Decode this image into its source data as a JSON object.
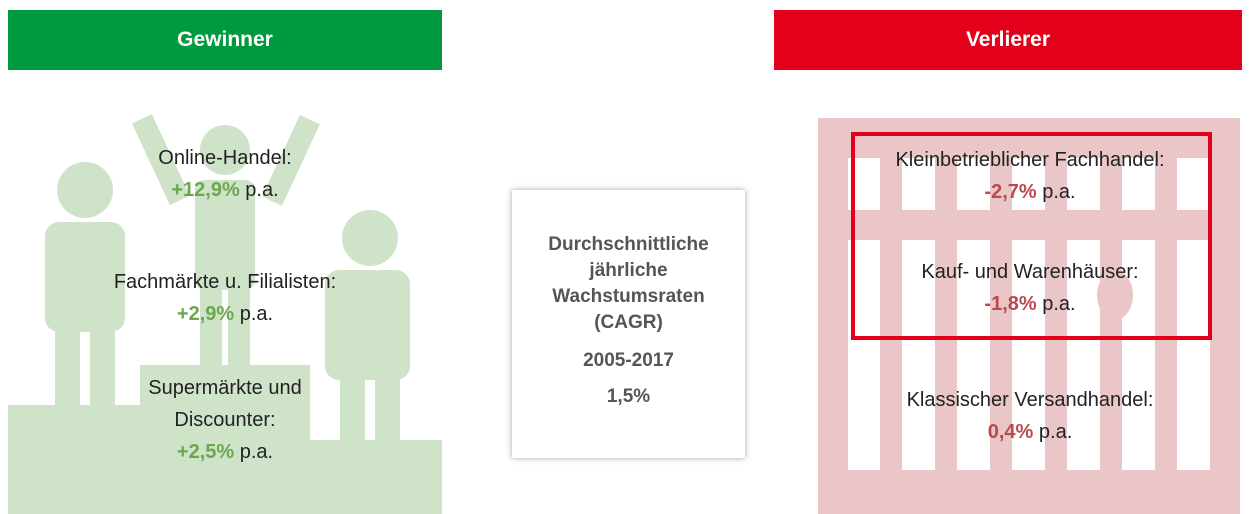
{
  "winners": {
    "title": "Gewinner",
    "items": [
      {
        "label": "Online-Handel:",
        "value": "+12,9%",
        "unit": "p.a."
      },
      {
        "label": "Fachmärkte u. Filialisten:",
        "value": "+2,9%",
        "unit": "p.a."
      },
      {
        "label": "Supermärkte und Discounter:",
        "value": "+2,5%",
        "unit": "p.a."
      }
    ]
  },
  "center": {
    "title": "Durchschnittliche jährliche Wachstumsraten (CAGR)",
    "period": "2005-2017",
    "value": "1,5%"
  },
  "losers": {
    "title": "Verlierer",
    "items": [
      {
        "label": "Kleinbetrieblicher Fachhandel:",
        "value": "-2,7%",
        "unit": "p.a."
      },
      {
        "label": "Kauf- und Warenhäuser:",
        "value": "-1,8%",
        "unit": "p.a."
      },
      {
        "label": "Klassischer Versandhandel:",
        "value": "0,4%",
        "unit": "p.a."
      }
    ]
  }
}
